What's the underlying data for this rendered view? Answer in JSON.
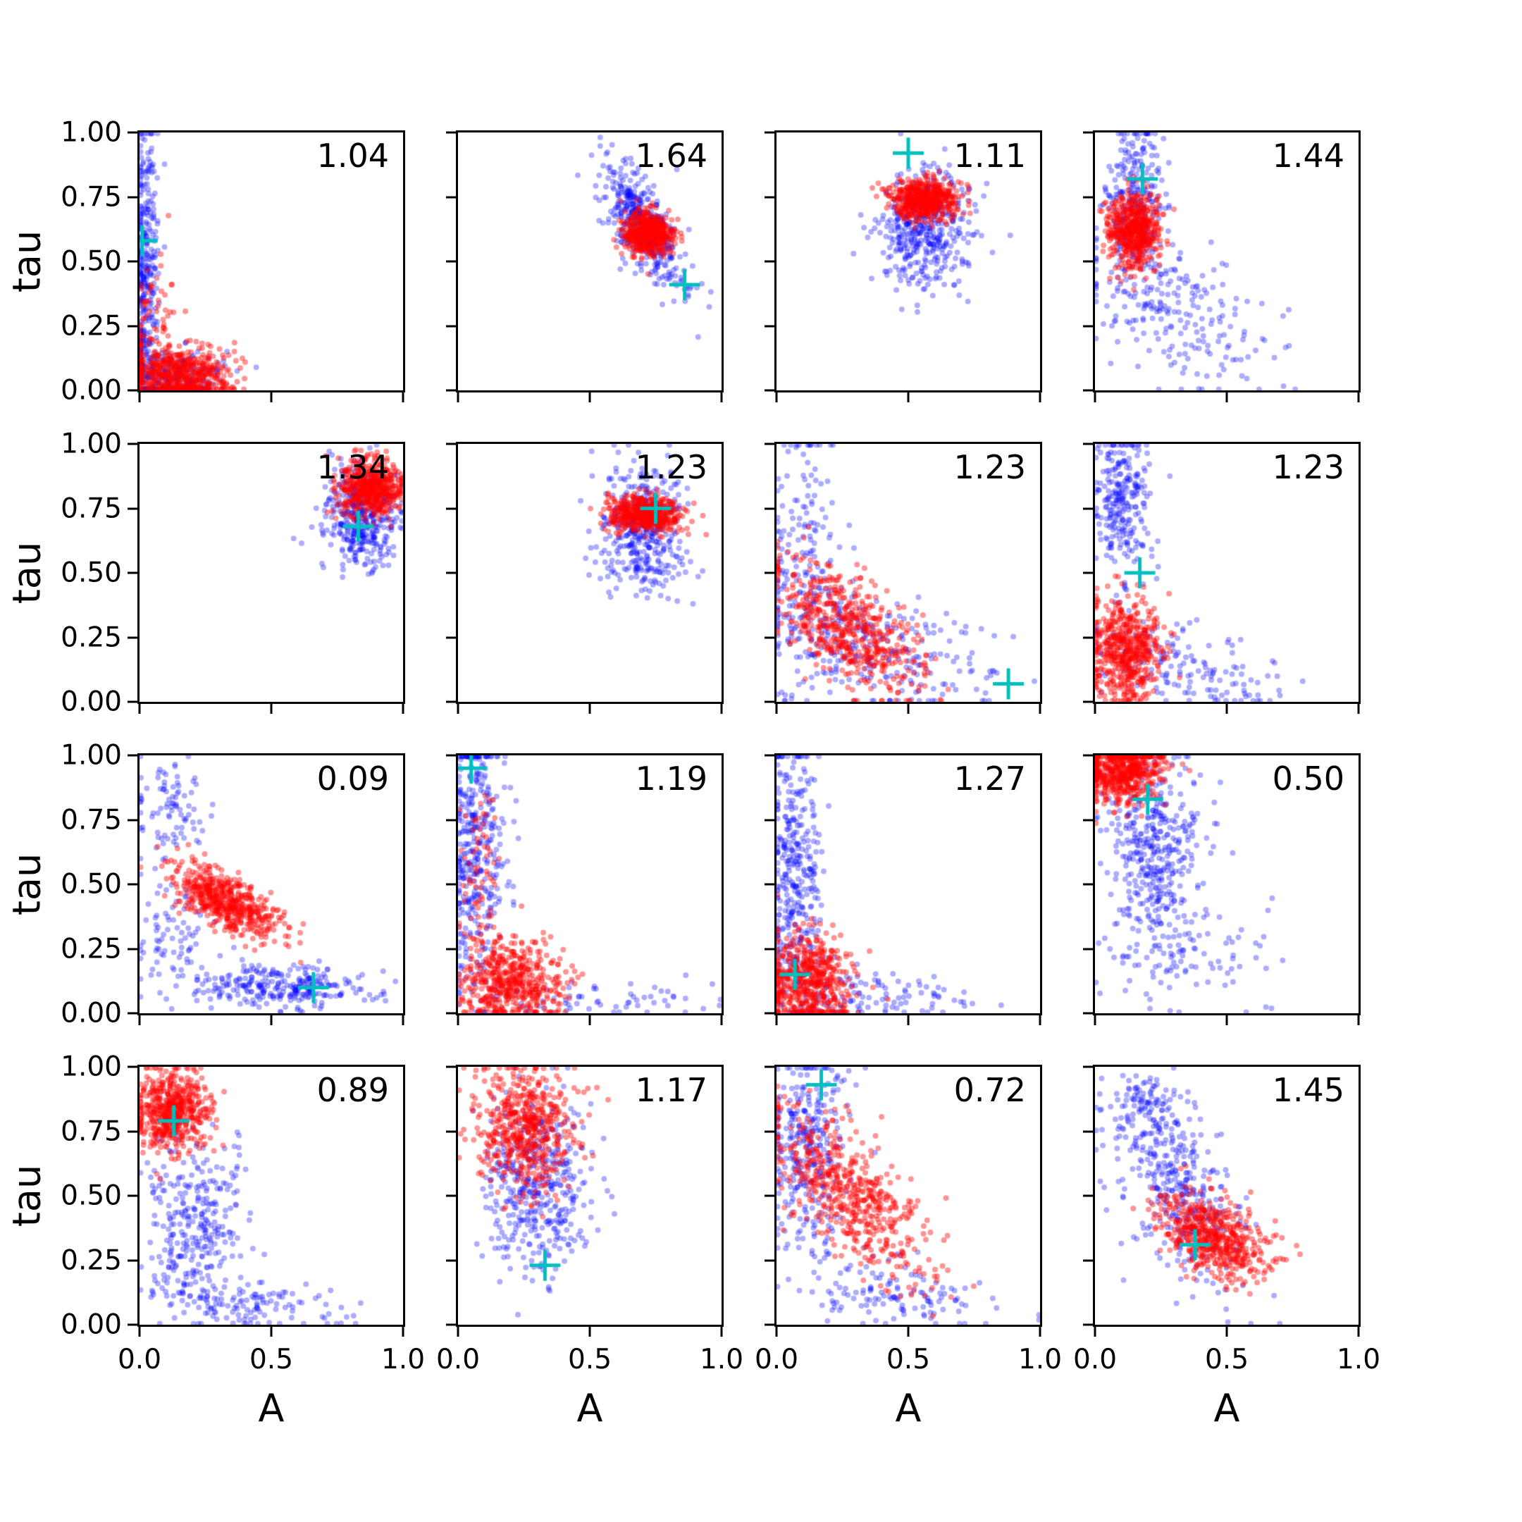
{
  "figure": {
    "xlabel": "A",
    "ylabel": "tau",
    "x_tick_labels": [
      "0.0",
      "0.5",
      "1.0"
    ],
    "x_tick_positions": [
      0,
      0.5,
      1
    ],
    "y_tick_labels": [
      "0.00",
      "0.25",
      "0.50",
      "0.75",
      "1.00"
    ],
    "y_tick_positions": [
      0,
      0.25,
      0.5,
      0.75,
      1
    ],
    "colors": {
      "blue_points": "#0000ff",
      "red_points": "#ff0000",
      "cross_marker": "#00bfbf",
      "axis": "#000000"
    }
  },
  "chart_data": [
    {
      "type": "scatter",
      "row": 0,
      "col": 0,
      "annotation": "1.04",
      "xlim": [
        0,
        1
      ],
      "ylim": [
        0,
        1
      ],
      "cross": [
        0.01,
        0.58
      ],
      "series": [
        {
          "name": "blue",
          "clusters": [
            {
              "cx": 0.02,
              "cy": 0.45,
              "sx": 0.025,
              "sy": 0.3,
              "rho": 0,
              "n": 350
            },
            {
              "cx": 0.12,
              "cy": 0.05,
              "sx": 0.1,
              "sy": 0.05,
              "rho": 0,
              "n": 250
            }
          ]
        },
        {
          "name": "red",
          "clusters": [
            {
              "cx": 0.15,
              "cy": 0.06,
              "sx": 0.1,
              "sy": 0.05,
              "rho": 0,
              "n": 550
            },
            {
              "cx": 0.06,
              "cy": 0.25,
              "sx": 0.05,
              "sy": 0.12,
              "rho": 0,
              "n": 80
            }
          ]
        }
      ]
    },
    {
      "type": "scatter",
      "row": 0,
      "col": 1,
      "annotation": "1.64",
      "xlim": [
        0,
        1
      ],
      "ylim": [
        0,
        1
      ],
      "cross": [
        0.86,
        0.41
      ],
      "series": [
        {
          "name": "blue",
          "clusters": [
            {
              "cx": 0.7,
              "cy": 0.64,
              "sx": 0.08,
              "sy": 0.12,
              "rho": -0.75,
              "n": 450
            }
          ]
        },
        {
          "name": "red",
          "clusters": [
            {
              "cx": 0.72,
              "cy": 0.61,
              "sx": 0.045,
              "sy": 0.04,
              "rho": 0,
              "n": 550
            }
          ]
        }
      ]
    },
    {
      "type": "scatter",
      "row": 0,
      "col": 2,
      "annotation": "1.11",
      "xlim": [
        0,
        1
      ],
      "ylim": [
        0,
        1
      ],
      "cross": [
        0.5,
        0.92
      ],
      "series": [
        {
          "name": "blue",
          "clusters": [
            {
              "cx": 0.56,
              "cy": 0.63,
              "sx": 0.09,
              "sy": 0.12,
              "rho": 0,
              "n": 450
            }
          ]
        },
        {
          "name": "red",
          "clusters": [
            {
              "cx": 0.56,
              "cy": 0.74,
              "sx": 0.065,
              "sy": 0.04,
              "rho": 0,
              "n": 550
            }
          ]
        }
      ]
    },
    {
      "type": "scatter",
      "row": 0,
      "col": 3,
      "annotation": "1.44",
      "xlim": [
        0,
        1
      ],
      "ylim": [
        0,
        1
      ],
      "cross": [
        0.18,
        0.82
      ],
      "series": [
        {
          "name": "blue",
          "clusters": [
            {
              "cx": 0.16,
              "cy": 0.72,
              "sx": 0.06,
              "sy": 0.16,
              "rho": 0,
              "n": 280
            },
            {
              "cx": 0.3,
              "cy": 0.3,
              "sx": 0.17,
              "sy": 0.15,
              "rho": -0.5,
              "n": 220
            }
          ]
        },
        {
          "name": "red",
          "clusters": [
            {
              "cx": 0.15,
              "cy": 0.62,
              "sx": 0.05,
              "sy": 0.07,
              "rho": 0,
              "n": 550
            }
          ]
        }
      ]
    },
    {
      "type": "scatter",
      "row": 1,
      "col": 0,
      "annotation": "1.34",
      "xlim": [
        0,
        1
      ],
      "ylim": [
        0,
        1
      ],
      "cross": [
        0.83,
        0.68
      ],
      "series": [
        {
          "name": "blue",
          "clusters": [
            {
              "cx": 0.84,
              "cy": 0.72,
              "sx": 0.07,
              "sy": 0.1,
              "rho": 0,
              "n": 400
            }
          ]
        },
        {
          "name": "red",
          "clusters": [
            {
              "cx": 0.87,
              "cy": 0.83,
              "sx": 0.06,
              "sy": 0.055,
              "rho": 0,
              "n": 550
            }
          ]
        }
      ]
    },
    {
      "type": "scatter",
      "row": 1,
      "col": 1,
      "annotation": "1.23",
      "xlim": [
        0,
        1
      ],
      "ylim": [
        0,
        1
      ],
      "cross": [
        0.75,
        0.75
      ],
      "series": [
        {
          "name": "blue",
          "clusters": [
            {
              "cx": 0.7,
              "cy": 0.67,
              "sx": 0.08,
              "sy": 0.12,
              "rho": 0,
              "n": 420
            }
          ]
        },
        {
          "name": "red",
          "clusters": [
            {
              "cx": 0.71,
              "cy": 0.73,
              "sx": 0.07,
              "sy": 0.035,
              "rho": 0,
              "n": 550
            }
          ]
        }
      ]
    },
    {
      "type": "scatter",
      "row": 1,
      "col": 2,
      "annotation": "1.23",
      "xlim": [
        0,
        1
      ],
      "ylim": [
        0,
        1
      ],
      "cross": [
        0.88,
        0.07
      ],
      "series": [
        {
          "name": "blue",
          "clusters": [
            {
              "cx": 0.1,
              "cy": 0.55,
              "sx": 0.07,
              "sy": 0.25,
              "rho": 0,
              "n": 200
            },
            {
              "cx": 0.4,
              "cy": 0.2,
              "sx": 0.22,
              "sy": 0.12,
              "rho": -0.5,
              "n": 250
            }
          ]
        },
        {
          "name": "red",
          "clusters": [
            {
              "cx": 0.28,
              "cy": 0.28,
              "sx": 0.14,
              "sy": 0.13,
              "rho": -0.6,
              "n": 550
            }
          ]
        }
      ]
    },
    {
      "type": "scatter",
      "row": 1,
      "col": 3,
      "annotation": "1.23",
      "xlim": [
        0,
        1
      ],
      "ylim": [
        0,
        1
      ],
      "cross": [
        0.17,
        0.5
      ],
      "series": [
        {
          "name": "blue",
          "clusters": [
            {
              "cx": 0.1,
              "cy": 0.78,
              "sx": 0.05,
              "sy": 0.15,
              "rho": 0,
              "n": 260
            },
            {
              "cx": 0.3,
              "cy": 0.15,
              "sx": 0.2,
              "sy": 0.1,
              "rho": -0.5,
              "n": 160
            }
          ]
        },
        {
          "name": "red",
          "clusters": [
            {
              "cx": 0.12,
              "cy": 0.2,
              "sx": 0.07,
              "sy": 0.1,
              "rho": 0,
              "n": 550
            }
          ]
        }
      ]
    },
    {
      "type": "scatter",
      "row": 2,
      "col": 0,
      "annotation": "0.09",
      "xlim": [
        0,
        1
      ],
      "ylim": [
        0,
        1
      ],
      "cross": [
        0.66,
        0.1
      ],
      "series": [
        {
          "name": "blue",
          "clusters": [
            {
              "cx": 0.12,
              "cy": 0.8,
              "sx": 0.08,
              "sy": 0.12,
              "rho": 0,
              "n": 90
            },
            {
              "cx": 0.55,
              "cy": 0.1,
              "sx": 0.17,
              "sy": 0.04,
              "rho": 0,
              "n": 280
            },
            {
              "cx": 0.15,
              "cy": 0.3,
              "sx": 0.08,
              "sy": 0.12,
              "rho": 0,
              "n": 80
            }
          ]
        },
        {
          "name": "red",
          "clusters": [
            {
              "cx": 0.33,
              "cy": 0.43,
              "sx": 0.1,
              "sy": 0.07,
              "rho": -0.65,
              "n": 550
            }
          ]
        }
      ]
    },
    {
      "type": "scatter",
      "row": 2,
      "col": 1,
      "annotation": "1.19",
      "xlim": [
        0,
        1
      ],
      "ylim": [
        0,
        1
      ],
      "cross": [
        0.05,
        0.95
      ],
      "series": [
        {
          "name": "blue",
          "clusters": [
            {
              "cx": 0.07,
              "cy": 0.62,
              "sx": 0.05,
              "sy": 0.28,
              "rho": 0,
              "n": 380
            },
            {
              "cx": 0.45,
              "cy": 0.05,
              "sx": 0.25,
              "sy": 0.04,
              "rho": 0,
              "n": 70
            }
          ]
        },
        {
          "name": "red",
          "clusters": [
            {
              "cx": 0.2,
              "cy": 0.12,
              "sx": 0.1,
              "sy": 0.08,
              "rho": 0,
              "n": 500
            },
            {
              "cx": 0.08,
              "cy": 0.45,
              "sx": 0.04,
              "sy": 0.2,
              "rho": 0,
              "n": 80
            }
          ]
        }
      ]
    },
    {
      "type": "scatter",
      "row": 2,
      "col": 2,
      "annotation": "1.27",
      "xlim": [
        0,
        1
      ],
      "ylim": [
        0,
        1
      ],
      "cross": [
        0.07,
        0.15
      ],
      "series": [
        {
          "name": "blue",
          "clusters": [
            {
              "cx": 0.07,
              "cy": 0.55,
              "sx": 0.05,
              "sy": 0.27,
              "rho": 0,
              "n": 360
            },
            {
              "cx": 0.35,
              "cy": 0.07,
              "sx": 0.2,
              "sy": 0.05,
              "rho": 0,
              "n": 120
            }
          ]
        },
        {
          "name": "red",
          "clusters": [
            {
              "cx": 0.12,
              "cy": 0.13,
              "sx": 0.08,
              "sy": 0.09,
              "rho": 0,
              "n": 550
            }
          ]
        }
      ]
    },
    {
      "type": "scatter",
      "row": 2,
      "col": 3,
      "annotation": "0.50",
      "xlim": [
        0,
        1
      ],
      "ylim": [
        0,
        1
      ],
      "cross": [
        0.2,
        0.83
      ],
      "series": [
        {
          "name": "blue",
          "clusters": [
            {
              "cx": 0.22,
              "cy": 0.62,
              "sx": 0.09,
              "sy": 0.2,
              "rho": 0,
              "n": 420
            },
            {
              "cx": 0.35,
              "cy": 0.2,
              "sx": 0.15,
              "sy": 0.1,
              "rho": 0,
              "n": 80
            }
          ]
        },
        {
          "name": "red",
          "clusters": [
            {
              "cx": 0.1,
              "cy": 0.93,
              "sx": 0.08,
              "sy": 0.06,
              "rho": 0,
              "n": 550
            }
          ]
        }
      ]
    },
    {
      "type": "scatter",
      "row": 3,
      "col": 0,
      "annotation": "0.89",
      "xlim": [
        0,
        1
      ],
      "ylim": [
        0,
        1
      ],
      "cross": [
        0.13,
        0.79
      ],
      "series": [
        {
          "name": "blue",
          "clusters": [
            {
              "cx": 0.2,
              "cy": 0.4,
              "sx": 0.1,
              "sy": 0.17,
              "rho": 0,
              "n": 300
            },
            {
              "cx": 0.4,
              "cy": 0.08,
              "sx": 0.2,
              "sy": 0.05,
              "rho": -0.4,
              "n": 130
            }
          ]
        },
        {
          "name": "red",
          "clusters": [
            {
              "cx": 0.12,
              "cy": 0.83,
              "sx": 0.07,
              "sy": 0.08,
              "rho": 0,
              "n": 550
            }
          ]
        }
      ]
    },
    {
      "type": "scatter",
      "row": 3,
      "col": 1,
      "annotation": "1.17",
      "xlim": [
        0,
        1
      ],
      "ylim": [
        0,
        1
      ],
      "cross": [
        0.33,
        0.23
      ],
      "series": [
        {
          "name": "blue",
          "clusters": [
            {
              "cx": 0.3,
              "cy": 0.55,
              "sx": 0.1,
              "sy": 0.17,
              "rho": 0,
              "n": 430
            }
          ]
        },
        {
          "name": "red",
          "clusters": [
            {
              "cx": 0.25,
              "cy": 0.76,
              "sx": 0.09,
              "sy": 0.12,
              "rho": 0,
              "n": 550
            }
          ]
        }
      ]
    },
    {
      "type": "scatter",
      "row": 3,
      "col": 2,
      "annotation": "0.72",
      "xlim": [
        0,
        1
      ],
      "ylim": [
        0,
        1
      ],
      "cross": [
        0.17,
        0.93
      ],
      "series": [
        {
          "name": "blue",
          "clusters": [
            {
              "cx": 0.12,
              "cy": 0.68,
              "sx": 0.07,
              "sy": 0.18,
              "rho": 0,
              "n": 320
            },
            {
              "cx": 0.45,
              "cy": 0.12,
              "sx": 0.2,
              "sy": 0.08,
              "rho": -0.4,
              "n": 130
            }
          ]
        },
        {
          "name": "red",
          "clusters": [
            {
              "cx": 0.28,
              "cy": 0.5,
              "sx": 0.15,
              "sy": 0.17,
              "rho": -0.7,
              "n": 550
            }
          ]
        }
      ]
    },
    {
      "type": "scatter",
      "row": 3,
      "col": 3,
      "annotation": "1.45",
      "xlim": [
        0,
        1
      ],
      "ylim": [
        0,
        1
      ],
      "cross": [
        0.38,
        0.31
      ],
      "series": [
        {
          "name": "blue",
          "clusters": [
            {
              "cx": 0.3,
              "cy": 0.55,
              "sx": 0.13,
              "sy": 0.18,
              "rho": -0.5,
              "n": 380
            },
            {
              "cx": 0.18,
              "cy": 0.85,
              "sx": 0.07,
              "sy": 0.07,
              "rho": 0,
              "n": 70
            }
          ]
        },
        {
          "name": "red",
          "clusters": [
            {
              "cx": 0.45,
              "cy": 0.34,
              "sx": 0.1,
              "sy": 0.08,
              "rho": -0.45,
              "n": 550
            }
          ]
        }
      ]
    }
  ]
}
